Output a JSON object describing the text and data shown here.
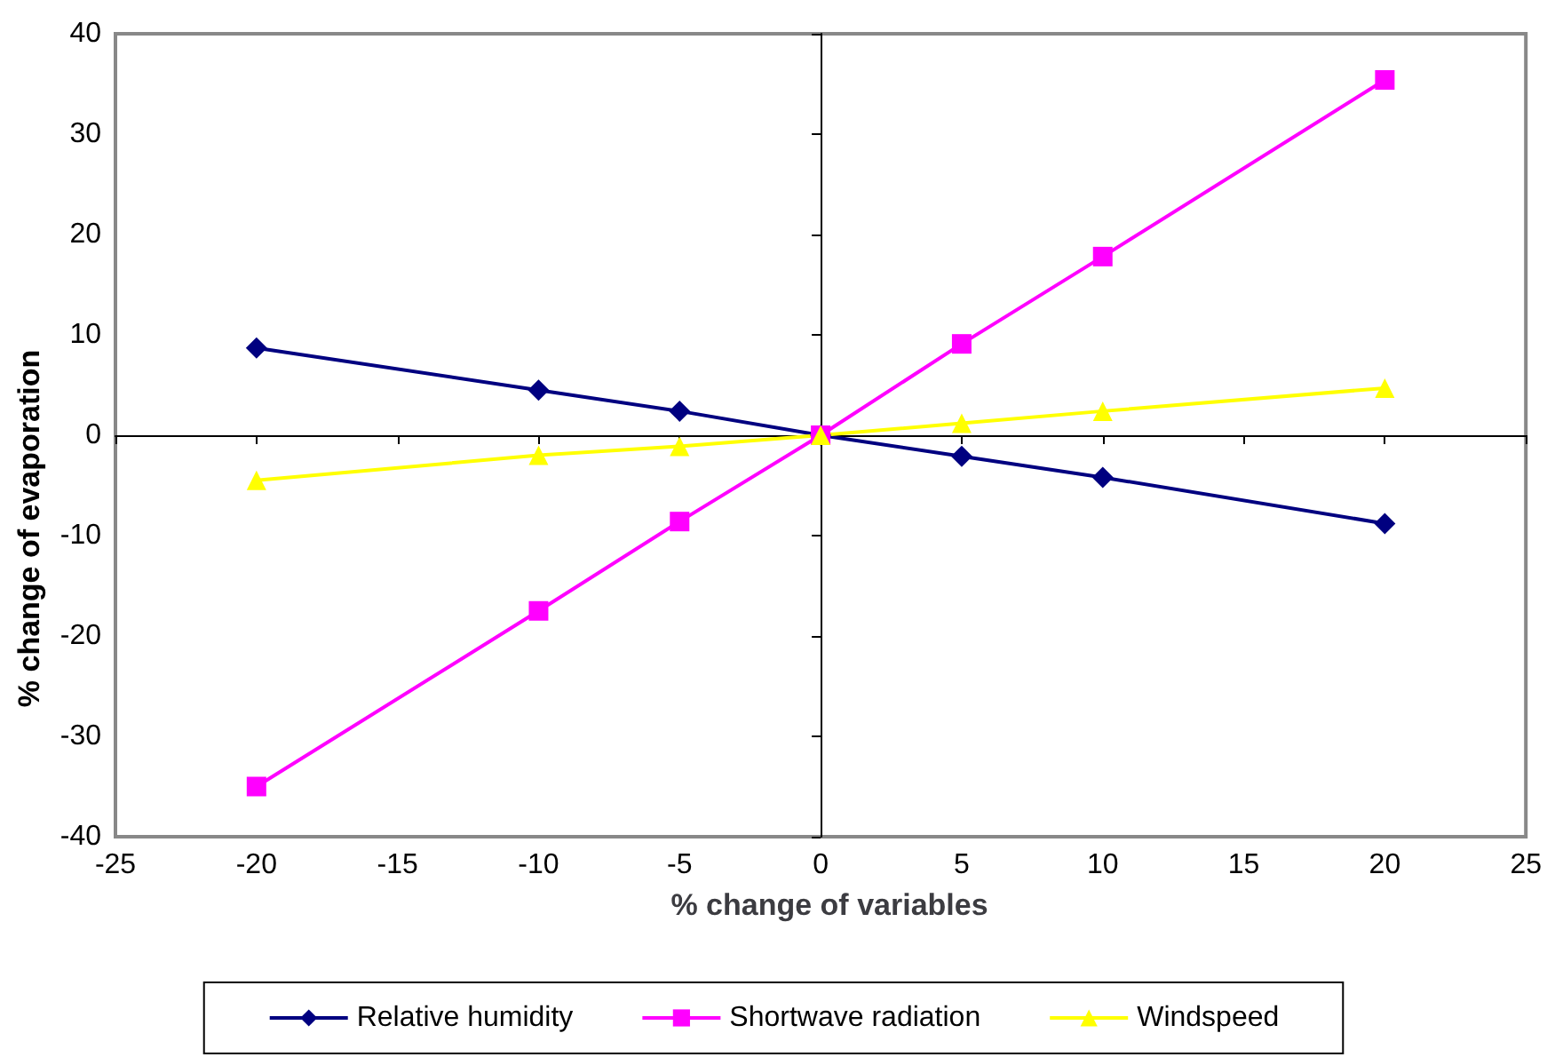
{
  "chart_data": {
    "type": "line",
    "xlabel": "% change of variables",
    "ylabel": "% change of evaporation",
    "x": [
      -20,
      -10,
      -5,
      0,
      5,
      10,
      20
    ],
    "series": [
      {
        "name": "Relative humidity",
        "color": "#000080",
        "marker": "diamond",
        "values": [
          8.7,
          4.5,
          2.4,
          0,
          -2.1,
          -4.2,
          -8.8
        ]
      },
      {
        "name": "Shortwave radiation",
        "color": "#ff00ff",
        "marker": "square",
        "values": [
          -35,
          -17.5,
          -8.6,
          0,
          9.1,
          17.8,
          35.4
        ]
      },
      {
        "name": "Windspeed",
        "color": "#ffff00",
        "marker": "triangle",
        "values": [
          -4.5,
          -2,
          -1.1,
          0,
          1.2,
          2.4,
          4.7
        ]
      }
    ],
    "xlim": [
      -25,
      25
    ],
    "xticks": [
      -25,
      -20,
      -15,
      -10,
      -5,
      0,
      5,
      10,
      15,
      20,
      25
    ],
    "ylim": [
      -40,
      40
    ],
    "yticks": [
      -40,
      -30,
      -20,
      -10,
      0,
      10,
      20,
      30,
      40
    ],
    "legend": "bottom",
    "line_style": "solid"
  }
}
